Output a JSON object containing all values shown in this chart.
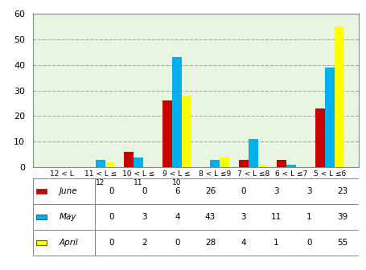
{
  "categories": [
    "12 < L",
    "11 < L ≤\n12",
    "10 < L ≤\n11",
    "9 < L ≤\n10",
    "8 < L ≤9",
    "7 < L ≤8",
    "6 < L ≤7",
    "5 < L ≤6"
  ],
  "june": [
    0,
    0,
    6,
    26,
    0,
    3,
    3,
    23
  ],
  "may": [
    0,
    3,
    4,
    43,
    3,
    11,
    1,
    39
  ],
  "april": [
    0,
    2,
    0,
    28,
    4,
    1,
    0,
    55
  ],
  "june_color": "#cc0000",
  "may_color": "#00b0f0",
  "april_color": "#ffff00",
  "bg_plot": "#e8f5e0",
  "bg_figure": "#ffffff",
  "ylim": [
    0,
    60
  ],
  "yticks": [
    0,
    10,
    20,
    30,
    40,
    50,
    60
  ],
  "bar_width": 0.25,
  "legend_labels": [
    "June",
    "May",
    "April"
  ],
  "table_june": [
    0,
    0,
    6,
    26,
    0,
    3,
    3,
    23
  ],
  "table_may": [
    0,
    3,
    4,
    43,
    3,
    11,
    1,
    39
  ],
  "table_april": [
    0,
    2,
    0,
    28,
    4,
    1,
    0,
    55
  ]
}
